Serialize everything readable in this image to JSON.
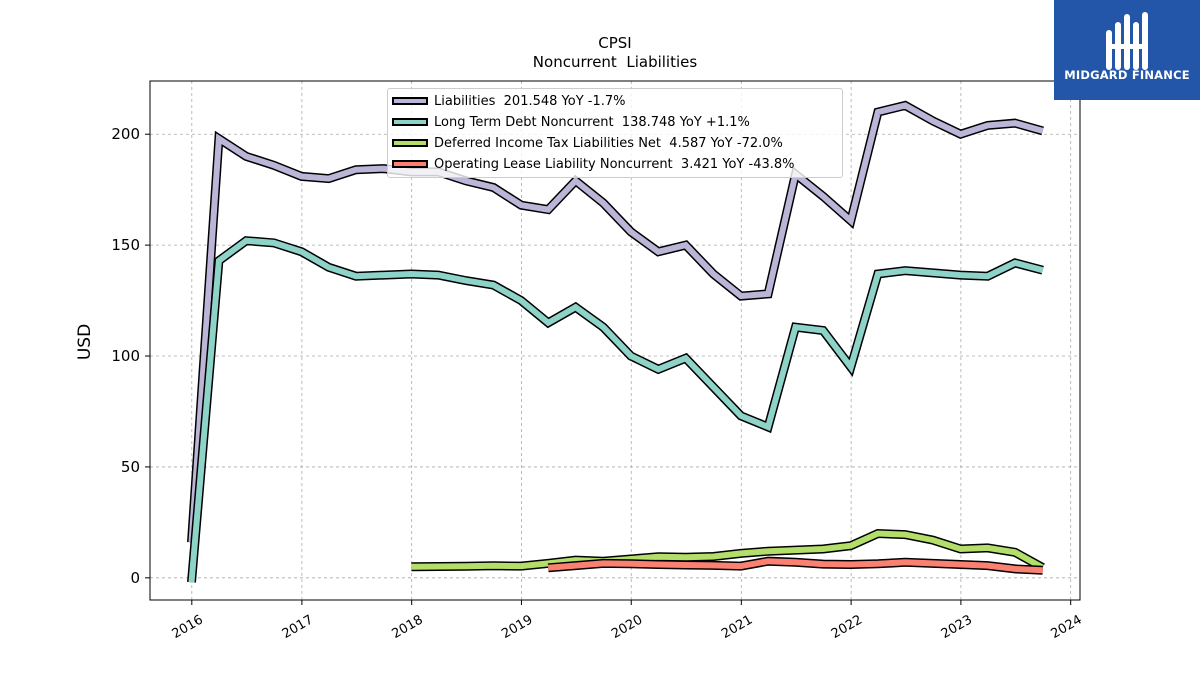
{
  "chart_data": {
    "type": "line",
    "title": "CPSI",
    "subtitle": "Noncurrent  Liabilities",
    "ylabel": "USD",
    "xlabel": "",
    "ylim": [
      -10,
      224
    ],
    "xlim": [
      "2015-08-15",
      "2024-02-01"
    ],
    "grid": true,
    "legend_position": "top-center",
    "y_ticks": [
      "0",
      "50",
      "100",
      "150",
      "200"
    ],
    "x_ticks": [
      "2016",
      "2017",
      "2018",
      "2019",
      "2020",
      "2021",
      "2022",
      "2023",
      "2024"
    ],
    "series": [
      {
        "name": "Liabilities",
        "legend_label": "Liabilities  201.548 YoY -1.7%",
        "color": "#bcb5d8",
        "points": [
          [
            "2015-12-31",
            16
          ],
          [
            "2016-03-31",
            198
          ],
          [
            "2016-06-30",
            190
          ],
          [
            "2016-09-30",
            186
          ],
          [
            "2016-12-31",
            181
          ],
          [
            "2017-03-31",
            180
          ],
          [
            "2017-06-30",
            184
          ],
          [
            "2017-09-30",
            184.5
          ],
          [
            "2017-12-31",
            183
          ],
          [
            "2018-03-31",
            183
          ],
          [
            "2018-06-30",
            179
          ],
          [
            "2018-09-30",
            176
          ],
          [
            "2018-12-31",
            168
          ],
          [
            "2019-03-31",
            166
          ],
          [
            "2019-06-30",
            179
          ],
          [
            "2019-09-30",
            169
          ],
          [
            "2019-12-31",
            156
          ],
          [
            "2020-03-31",
            147
          ],
          [
            "2020-06-30",
            150
          ],
          [
            "2020-09-30",
            137
          ],
          [
            "2020-12-31",
            127
          ],
          [
            "2021-03-31",
            128
          ],
          [
            "2021-06-30",
            182
          ],
          [
            "2021-09-30",
            172
          ],
          [
            "2021-12-31",
            161
          ],
          [
            "2022-03-31",
            210
          ],
          [
            "2022-06-30",
            213
          ],
          [
            "2022-09-30",
            206
          ],
          [
            "2022-12-31",
            200
          ],
          [
            "2023-03-31",
            204
          ],
          [
            "2023-06-30",
            205
          ],
          [
            "2023-09-30",
            201.5
          ]
        ]
      },
      {
        "name": "Long Term Debt Noncurrent",
        "legend_label": "Long Term Debt Noncurrent  138.748 YoY +1.1%",
        "color": "#8dd3c7",
        "points": [
          [
            "2015-12-31",
            -2
          ],
          [
            "2016-03-31",
            143
          ],
          [
            "2016-06-30",
            152
          ],
          [
            "2016-09-30",
            151
          ],
          [
            "2016-12-31",
            147
          ],
          [
            "2017-03-31",
            140
          ],
          [
            "2017-06-30",
            136
          ],
          [
            "2017-09-30",
            136.5
          ],
          [
            "2017-12-31",
            137
          ],
          [
            "2018-03-31",
            136.5
          ],
          [
            "2018-06-30",
            134
          ],
          [
            "2018-09-30",
            132
          ],
          [
            "2018-12-31",
            125
          ],
          [
            "2019-03-31",
            115
          ],
          [
            "2019-06-30",
            122
          ],
          [
            "2019-09-30",
            113
          ],
          [
            "2019-12-31",
            100
          ],
          [
            "2020-03-31",
            94
          ],
          [
            "2020-06-30",
            99
          ],
          [
            "2020-09-30",
            86
          ],
          [
            "2020-12-31",
            73
          ],
          [
            "2021-03-31",
            68
          ],
          [
            "2021-06-30",
            113
          ],
          [
            "2021-09-30",
            111.5
          ],
          [
            "2021-12-31",
            95
          ],
          [
            "2022-03-31",
            137
          ],
          [
            "2022-06-30",
            138.5
          ],
          [
            "2022-09-30",
            137.5
          ],
          [
            "2022-12-31",
            136.5
          ],
          [
            "2023-03-31",
            136
          ],
          [
            "2023-06-30",
            142
          ],
          [
            "2023-09-30",
            138.7
          ]
        ]
      },
      {
        "name": "Deferred Income Tax Liabilities Net",
        "legend_label": "Deferred Income Tax Liabilities Net  4.587 YoY -72.0%",
        "color": "#b3de69",
        "points": [
          [
            "2017-12-31",
            5
          ],
          [
            "2018-06-30",
            5.2
          ],
          [
            "2018-09-30",
            5.4
          ],
          [
            "2018-12-31",
            5.3
          ],
          [
            "2019-03-31",
            6.5
          ],
          [
            "2019-06-30",
            8
          ],
          [
            "2019-09-30",
            7.5
          ],
          [
            "2019-12-31",
            8.5
          ],
          [
            "2020-03-31",
            9.5
          ],
          [
            "2020-06-30",
            9.3
          ],
          [
            "2020-09-30",
            9.6
          ],
          [
            "2020-12-31",
            11
          ],
          [
            "2021-03-31",
            12
          ],
          [
            "2021-06-30",
            12.5
          ],
          [
            "2021-09-30",
            13
          ],
          [
            "2021-12-31",
            14.5
          ],
          [
            "2022-03-31",
            20
          ],
          [
            "2022-06-30",
            19.5
          ],
          [
            "2022-09-30",
            17
          ],
          [
            "2022-12-31",
            13
          ],
          [
            "2023-03-31",
            13.5
          ],
          [
            "2023-06-30",
            11.5
          ],
          [
            "2023-09-30",
            4.6
          ]
        ]
      },
      {
        "name": "Operating Lease Liability Noncurrent",
        "legend_label": "Operating Lease Liability Noncurrent  3.421 YoY -43.8%",
        "color": "#fb8072",
        "points": [
          [
            "2019-03-31",
            4.5
          ],
          [
            "2019-06-30",
            5.5
          ],
          [
            "2019-09-30",
            6.5
          ],
          [
            "2019-12-31",
            6.3
          ],
          [
            "2020-03-31",
            6
          ],
          [
            "2020-06-30",
            5.8
          ],
          [
            "2020-09-30",
            5.6
          ],
          [
            "2020-12-31",
            5.3
          ],
          [
            "2021-03-31",
            7.5
          ],
          [
            "2021-06-30",
            7
          ],
          [
            "2021-09-30",
            6.2
          ],
          [
            "2021-12-31",
            6
          ],
          [
            "2022-03-31",
            6.3
          ],
          [
            "2022-06-30",
            7
          ],
          [
            "2022-09-30",
            6.5
          ],
          [
            "2022-12-31",
            6
          ],
          [
            "2023-03-31",
            5.5
          ],
          [
            "2023-06-30",
            4
          ],
          [
            "2023-09-30",
            3.4
          ]
        ]
      }
    ]
  },
  "logo": {
    "text": "MIDGARD FINANCE",
    "bg_color": "#2356a8"
  }
}
